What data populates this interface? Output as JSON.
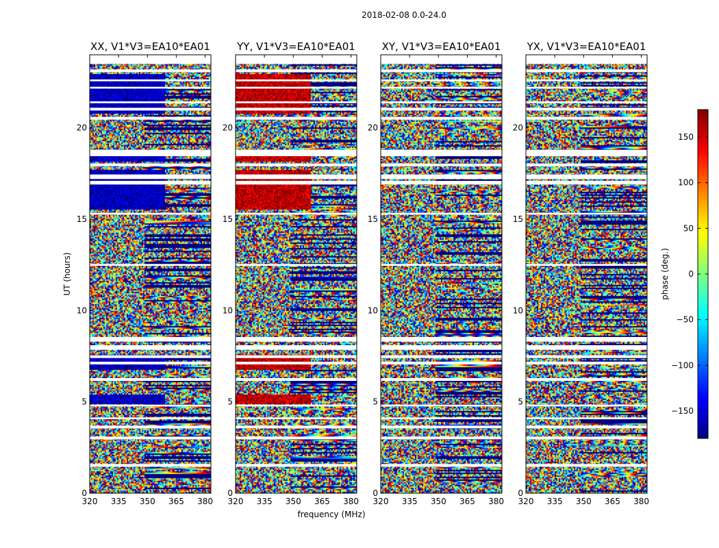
{
  "chart_data": {
    "type": "heatmap",
    "suptitle": "2018-02-08 0.0-24.0",
    "xlabel": "frequency (MHz)",
    "ylabel": "UT (hours)",
    "colorbar_label": "phase (deg.)",
    "colormap": "jet",
    "xlim": [
      320,
      383
    ],
    "ylim": [
      0,
      24
    ],
    "clim": [
      -180,
      180
    ],
    "x_ticks": [
      320,
      335,
      350,
      365,
      380
    ],
    "y_ticks": [
      0,
      5,
      10,
      15,
      20
    ],
    "colorbar_ticks": [
      -150,
      -100,
      -50,
      0,
      50,
      100,
      150
    ],
    "colorbar_tick_labels": [
      "−150",
      "−100",
      "−50",
      "0",
      "50",
      "100",
      "150"
    ],
    "panels": [
      {
        "title": "XX, V1*V3=EA10*EA01",
        "stokes": "XX",
        "phase_bias": -160,
        "bias_hours": [
          [
            4.9,
            5.4
          ],
          [
            6.8,
            7.6
          ],
          [
            15.6,
            17.7
          ],
          [
            18.2,
            18.6
          ],
          [
            20.8,
            23.0
          ]
        ]
      },
      {
        "title": "YY, V1*V3=EA10*EA01",
        "stokes": "YY",
        "phase_bias": 160,
        "bias_hours": [
          [
            4.9,
            5.4
          ],
          [
            6.8,
            7.6
          ],
          [
            15.6,
            17.7
          ],
          [
            18.2,
            18.6
          ],
          [
            20.8,
            23.0
          ]
        ]
      },
      {
        "title": "XY, V1*V3=EA10*EA01",
        "stokes": "XY",
        "phase_bias": null,
        "bias_hours": []
      },
      {
        "title": "YX, V1*V3=EA10*EA01",
        "stokes": "YX",
        "phase_bias": null,
        "bias_hours": []
      }
    ],
    "flagged_hours": [
      [
        1.45,
        1.6
      ],
      [
        2.95,
        3.1
      ],
      [
        3.55,
        3.7
      ],
      [
        4.05,
        4.15
      ],
      [
        4.75,
        4.85
      ],
      [
        6.15,
        6.3
      ],
      [
        7.05,
        7.2
      ],
      [
        7.4,
        7.55
      ],
      [
        7.85,
        8.1
      ],
      [
        8.3,
        8.55
      ],
      [
        12.45,
        12.55
      ],
      [
        15.25,
        15.35
      ],
      [
        16.9,
        17.1
      ],
      [
        17.2,
        17.45
      ],
      [
        17.9,
        18.05
      ],
      [
        18.45,
        18.8
      ],
      [
        20.45,
        20.6
      ],
      [
        20.95,
        21.1
      ],
      [
        21.35,
        21.45
      ],
      [
        22.15,
        22.25
      ],
      [
        22.55,
        22.65
      ],
      [
        23.05,
        23.2
      ],
      [
        23.5,
        24.0
      ]
    ]
  }
}
